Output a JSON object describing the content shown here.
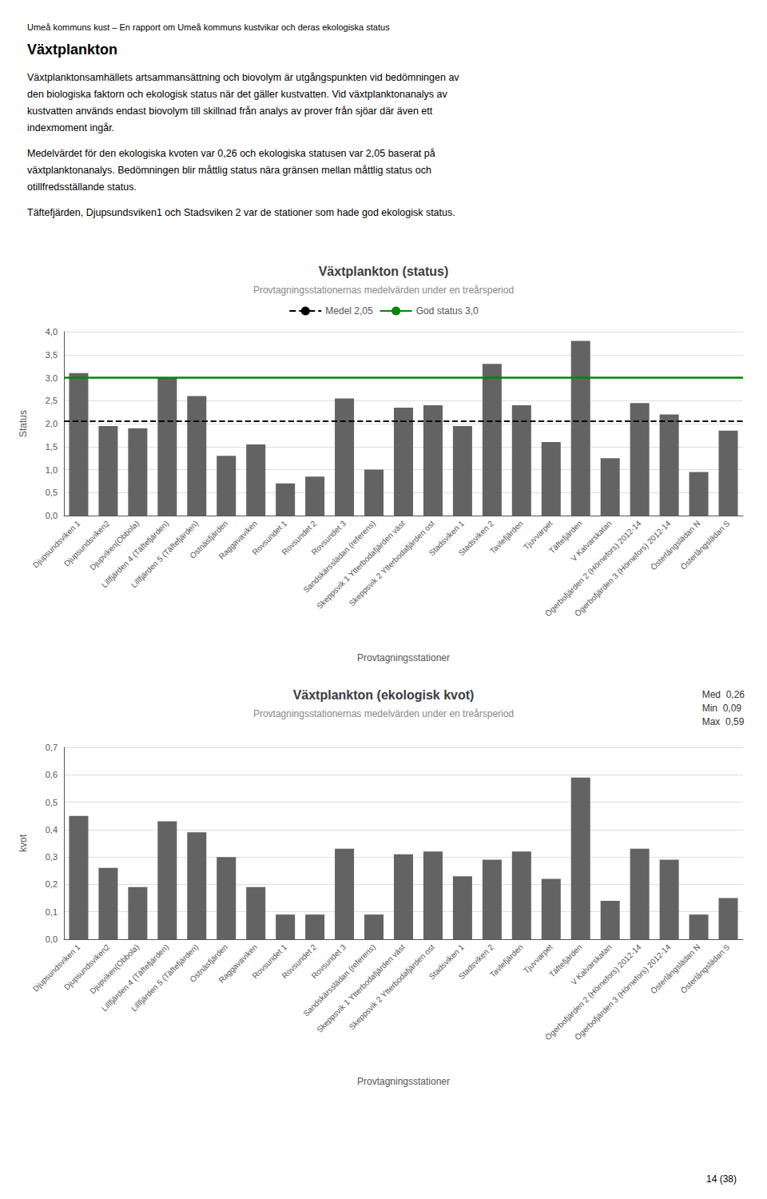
{
  "header": "Umeå kommuns kust – En rapport om Umeå kommuns kustvikar och deras ekologiska status",
  "section_title": "Växtplankton",
  "paragraphs": [
    [
      "Växtplanktonsamhällets artsammansättning och biovolym är utgångspunkten vid bedömningen av",
      "den biologiska faktorn och ekologisk status när det gäller kustvatten. Vid växtplanktonanalys av",
      "kustvatten används endast biovolym till skillnad från analys av prover från sjöar där även ett",
      "indexmoment ingår."
    ],
    [
      "Medelvärdet för den ekologiska kvoten var 0,26 och ekologiska statusen var 2,05 baserat på",
      "växtplanktonanalys. Bedömningen blir måttlig status nära gränsen mellan måttlig status och",
      "otillfredsställande status."
    ],
    [
      "Täftefjärden, Djupsundsviken1 och Stadsviken 2 var de stationer som hade god ekologisk status."
    ]
  ],
  "page_number": "14 (38)",
  "chart_data": [
    {
      "type": "bar",
      "title": "Växtplankton (status)",
      "subtitle": "Provtagningsstationernas medelvärden under en treårsperiod",
      "xlabel": "Provtagningsstationer",
      "ylabel": "Status",
      "categories": [
        "Djupsundsviken 1",
        "Djupsundsviken2",
        "Djupviken(Obbola)",
        "Lillfjärden 4 (Täftefjärden)",
        "Lillfjärden 5 (Täftefjärden)",
        "Ostnäsfjärden",
        "Raggavaviken",
        "Rovsundet 1",
        "Rovsundet 2",
        "Rovsundet 3",
        "Sandskärsslädan (referens)",
        "Skeppsvik 1 Ytterbodafjärden väst",
        "Skeppsvik 2 Ytterbodafjärden ost",
        "Stadsviken 1",
        "Stadsviken 2",
        "Tavlefjärden",
        "Tjuvvarpet",
        "Täftefjärden",
        "V Kalvarskatan",
        "Ögerbofjärden 2 (Hörnefors) 2012-14",
        "Ögerbofjärden 3 (Hörnefors) 2012-14",
        "Österlångslädan N",
        "Österlångslädan S"
      ],
      "values": [
        3.1,
        1.95,
        1.9,
        3.0,
        2.6,
        1.3,
        1.55,
        0.7,
        0.85,
        2.55,
        1.0,
        2.35,
        2.4,
        1.95,
        3.3,
        2.4,
        1.6,
        3.8,
        1.25,
        2.45,
        2.2,
        0.95,
        1.85
      ],
      "color": "#636363",
      "lines": [
        {
          "name": "Medel 2,05",
          "value": 2.05,
          "color": "#000000",
          "line_style": "dashed"
        },
        {
          "name": "God status 3,0",
          "value": 3.0,
          "color": "#008800",
          "line_style": "solid"
        }
      ],
      "legend": "top",
      "ylim": [
        0.0,
        4.0
      ],
      "yticks": [
        {
          "value": 0.0,
          "label": "0,0"
        },
        {
          "value": 0.5,
          "label": "0,5"
        },
        {
          "value": 1.0,
          "label": "1,0"
        },
        {
          "value": 1.5,
          "label": "1,5"
        },
        {
          "value": 2.0,
          "label": "2,0"
        },
        {
          "value": 2.5,
          "label": "2,5"
        },
        {
          "value": 3.0,
          "label": "3,0"
        },
        {
          "value": 3.5,
          "label": "3,5"
        },
        {
          "value": 4.0,
          "label": "4,0"
        }
      ],
      "grid": true
    },
    {
      "type": "bar",
      "title": "Växtplankton (ekologisk kvot)",
      "subtitle": "Provtagningsstationernas medelvärden under en treårsperiod",
      "xlabel": "Provtagningsstationer",
      "ylabel": "kvot",
      "annotations": [
        "Med  0,26",
        "Min  0,09",
        "Max  0,59"
      ],
      "categories": [
        "Djupsundsviken 1",
        "Djupsundsviken2",
        "Djupviken(Obbola)",
        "Lillfjärden 4 (Täftefjärden)",
        "Lillfjärden 5 (Täftefjärden)",
        "Ostnäsfjärden",
        "Raggavaviken",
        "Rovsundet 1",
        "Rovsundet 2",
        "Rovsundet 3",
        "Sandskärsslädan (referens)",
        "Skeppsvik 1 Ytterbodafjärden väst",
        "Skeppsvik 2 Ytterbodafjärden ost",
        "Stadsviken 1",
        "Stadsviken 2",
        "Tavlefjärden",
        "Tjuvvarpet",
        "Täftefjärden",
        "V Kalvarskatan",
        "Ögerbofjärden 2 (Hörnefors) 2012-14",
        "Ögerbofjärden 3 (Hörnefors) 2012-14",
        "Österlångslädan N",
        "Österlångslädan S"
      ],
      "values": [
        0.45,
        0.26,
        0.19,
        0.43,
        0.39,
        0.3,
        0.19,
        0.09,
        0.09,
        0.33,
        0.09,
        0.31,
        0.32,
        0.23,
        0.29,
        0.32,
        0.22,
        0.59,
        0.14,
        0.33,
        0.29,
        0.09,
        0.15
      ],
      "color": "#636363",
      "ylim": [
        0.0,
        0.7
      ],
      "yticks": [
        {
          "value": 0.0,
          "label": "0,0"
        },
        {
          "value": 0.1,
          "label": "0,1"
        },
        {
          "value": 0.2,
          "label": "0,2"
        },
        {
          "value": 0.3,
          "label": "0,3"
        },
        {
          "value": 0.4,
          "label": "0,4"
        },
        {
          "value": 0.5,
          "label": "0,5"
        },
        {
          "value": 0.6,
          "label": "0,6"
        },
        {
          "value": 0.7,
          "label": "0,7"
        }
      ],
      "grid": true
    }
  ]
}
